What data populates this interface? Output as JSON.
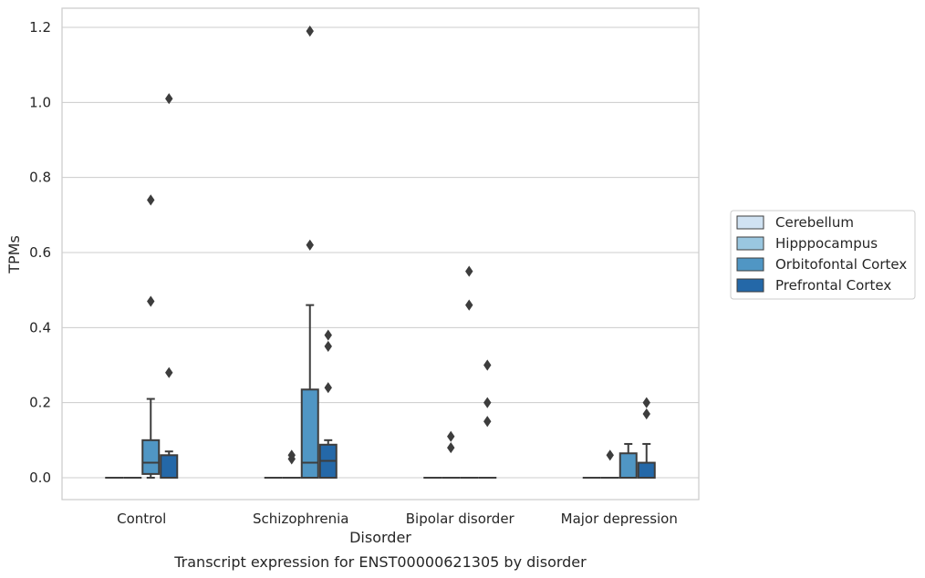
{
  "chart_data": {
    "type": "box",
    "xlabel": "Disorder",
    "ylabel": "TPMs",
    "caption": "Transcript expression for ENST00000621305 by disorder",
    "ylim": [
      -0.06,
      1.25
    ],
    "yticks": [
      "0.0",
      "0.2",
      "0.4",
      "0.6",
      "0.8",
      "1.0",
      "1.2"
    ],
    "grid": "horizontal",
    "legend_position": "right",
    "categories": [
      "Control",
      "Schizophrenia",
      "Bipolar disorder",
      "Major depression"
    ],
    "series": [
      {
        "name": "Cerebellum",
        "color": "#d0e2f2",
        "boxes": [
          {
            "q1": 0,
            "median": 0,
            "q3": 0,
            "whisker_low": 0,
            "whisker_high": 0,
            "outliers": []
          },
          {
            "q1": 0,
            "median": 0,
            "q3": 0,
            "whisker_low": 0,
            "whisker_high": 0,
            "outliers": []
          },
          {
            "q1": 0,
            "median": 0,
            "q3": 0,
            "whisker_low": 0,
            "whisker_high": 0,
            "outliers": []
          },
          {
            "q1": 0,
            "median": 0,
            "q3": 0,
            "whisker_low": 0,
            "whisker_high": 0,
            "outliers": []
          }
        ]
      },
      {
        "name": "Hipppocampus",
        "color": "#9ac7e0",
        "boxes": [
          {
            "q1": 0,
            "median": 0,
            "q3": 0,
            "whisker_low": 0,
            "whisker_high": 0,
            "outliers": []
          },
          {
            "q1": 0,
            "median": 0,
            "q3": 0,
            "whisker_low": 0,
            "whisker_high": 0,
            "outliers": [
              0.05,
              0.06
            ]
          },
          {
            "q1": 0,
            "median": 0,
            "q3": 0,
            "whisker_low": 0,
            "whisker_high": 0,
            "outliers": [
              0.08,
              0.11
            ]
          },
          {
            "q1": 0,
            "median": 0,
            "q3": 0,
            "whisker_low": 0,
            "whisker_high": 0,
            "outliers": [
              0.06
            ]
          }
        ]
      },
      {
        "name": "Orbitofontal Cortex",
        "color": "#5096c4",
        "boxes": [
          {
            "q1": 0.01,
            "median": 0.04,
            "q3": 0.1,
            "whisker_low": 0,
            "whisker_high": 0.21,
            "outliers": [
              0.47,
              0.74
            ]
          },
          {
            "q1": 0,
            "median": 0.04,
            "q3": 0.235,
            "whisker_low": 0,
            "whisker_high": 0.46,
            "outliers": [
              0.62,
              1.19
            ]
          },
          {
            "q1": 0,
            "median": 0,
            "q3": 0,
            "whisker_low": 0,
            "whisker_high": 0,
            "outliers": [
              0.46,
              0.55
            ]
          },
          {
            "q1": 0,
            "median": 0,
            "q3": 0.065,
            "whisker_low": 0,
            "whisker_high": 0.09,
            "outliers": []
          }
        ]
      },
      {
        "name": "Prefrontal Cortex",
        "color": "#2468a8",
        "boxes": [
          {
            "q1": 0,
            "median": 0,
            "q3": 0.06,
            "whisker_low": 0,
            "whisker_high": 0.07,
            "outliers": [
              0.28,
              1.01
            ]
          },
          {
            "q1": 0,
            "median": 0.045,
            "q3": 0.088,
            "whisker_low": 0,
            "whisker_high": 0.1,
            "outliers": [
              0.24,
              0.35,
              0.38
            ]
          },
          {
            "q1": 0,
            "median": 0,
            "q3": 0,
            "whisker_low": 0,
            "whisker_high": 0,
            "outliers": [
              0.15,
              0.2,
              0.3
            ]
          },
          {
            "q1": 0,
            "median": 0,
            "q3": 0.04,
            "whisker_low": 0,
            "whisker_high": 0.09,
            "outliers": [
              0.17,
              0.2
            ]
          }
        ]
      }
    ]
  }
}
